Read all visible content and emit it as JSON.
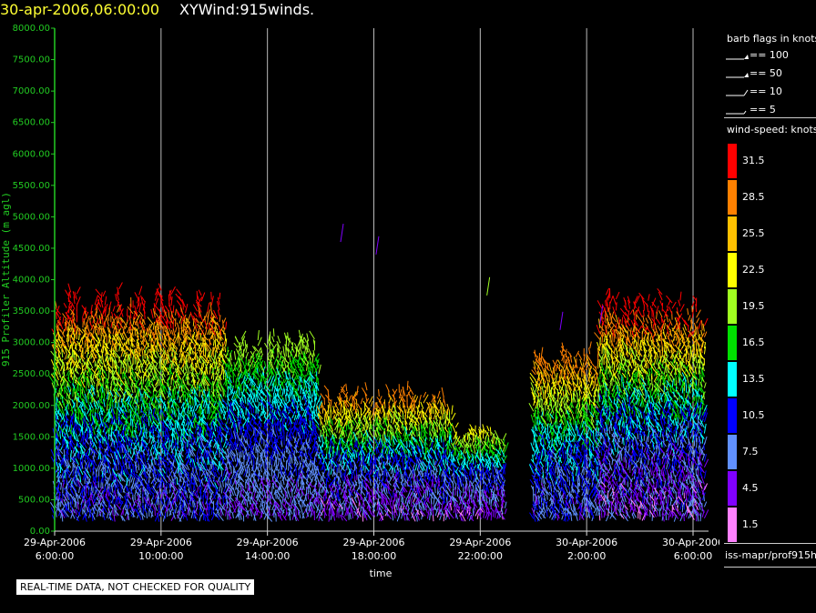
{
  "header": {
    "datetime": "30-apr-2006,06:00:00",
    "product": "XYWind:915winds."
  },
  "chart_data": {
    "type": "scatter",
    "title": "XYWind:915winds.",
    "xlabel": "time",
    "ylabel": "915 Profiler Altitude (m agl)",
    "xlim": [
      "2006-04-29 06:00",
      "2006-04-30 06:30"
    ],
    "ylim": [
      0,
      8000
    ],
    "grid": "vertical lines every 4 hours",
    "y_ticks": [
      "0.00",
      "500.00",
      "1000.00",
      "1500.00",
      "2000.00",
      "2500.00",
      "3000.00",
      "3500.00",
      "4000.00",
      "4500.00",
      "5000.00",
      "5500.00",
      "6000.00",
      "6500.00",
      "7000.00",
      "7500.00",
      "8000.00"
    ],
    "x_ticks": [
      {
        "date": "29-Apr-2006",
        "time": "6:00:00"
      },
      {
        "date": "29-Apr-2006",
        "time": "10:00:00"
      },
      {
        "date": "29-Apr-2006",
        "time": "14:00:00"
      },
      {
        "date": "29-Apr-2006",
        "time": "18:00:00"
      },
      {
        "date": "29-Apr-2006",
        "time": "22:00:00"
      },
      {
        "date": "30-Apr-2006",
        "time": "2:00:00"
      },
      {
        "date": "30-Apr-2006",
        "time": "6:00:00"
      }
    ],
    "segments": [
      {
        "start": "2006-04-29 06:00",
        "end": "2006-04-29 12:30",
        "alt_max": 3700,
        "speed_low": 4.5,
        "speed_high": 31.5
      },
      {
        "start": "2006-04-29 12:30",
        "end": "2006-04-29 16:00",
        "alt_max": 3000,
        "speed_low": 4.5,
        "speed_high": 19.5
      },
      {
        "start": "2006-04-29 16:00",
        "end": "2006-04-29 21:00",
        "alt_max": 2200,
        "speed_low": 1.5,
        "speed_high": 28.5
      },
      {
        "start": "2006-04-29 21:00",
        "end": "2006-04-29 23:00",
        "alt_max": 1600,
        "speed_low": 1.5,
        "speed_high": 22.5
      },
      {
        "start": "2006-04-30 00:00",
        "end": "2006-04-30 02:30",
        "alt_max": 2800,
        "speed_low": 4.5,
        "speed_high": 28.5
      },
      {
        "start": "2006-04-30 02:30",
        "end": "2006-04-30 06:30",
        "alt_max": 3600,
        "speed_low": 1.5,
        "speed_high": 31.5
      }
    ],
    "sparse_obs": [
      {
        "time": "2006-04-29 16:45",
        "alt": 4600,
        "speed": 4.5
      },
      {
        "time": "2006-04-29 18:05",
        "alt": 4400,
        "speed": 4.5
      },
      {
        "time": "2006-04-29 22:15",
        "alt": 3750,
        "speed": 19.5
      },
      {
        "time": "2006-04-30 01:00",
        "alt": 3200,
        "speed": 4.5
      },
      {
        "time": "2006-04-30 02:30",
        "alt": 3300,
        "speed": 4.5
      }
    ]
  },
  "legend": {
    "barb_title": "barb flags in knots",
    "barbs": [
      {
        "label": "== 100",
        "type": "flag"
      },
      {
        "label": "== 50",
        "type": "flag"
      },
      {
        "label": "== 10",
        "type": "full"
      },
      {
        "label": "== 5",
        "type": "half"
      }
    ],
    "speed_title": "wind-speed: knots",
    "colorbar": [
      {
        "value": "31.5",
        "color": "#ff0000"
      },
      {
        "value": "28.5",
        "color": "#ff8000"
      },
      {
        "value": "25.5",
        "color": "#ffc000"
      },
      {
        "value": "22.5",
        "color": "#ffff00"
      },
      {
        "value": "19.5",
        "color": "#a0ff20"
      },
      {
        "value": "16.5",
        "color": "#00e000"
      },
      {
        "value": "13.5",
        "color": "#00ffff"
      },
      {
        "value": "10.5",
        "color": "#0000ff"
      },
      {
        "value": "7.5",
        "color": "#6090ff"
      },
      {
        "value": "4.5",
        "color": "#8000ff"
      },
      {
        "value": "1.5",
        "color": "#ff80ff"
      }
    ],
    "source": "iss-mapr/prof915h"
  },
  "disclaimer": "REAL-TIME DATA, NOT CHECKED FOR QUALITY"
}
